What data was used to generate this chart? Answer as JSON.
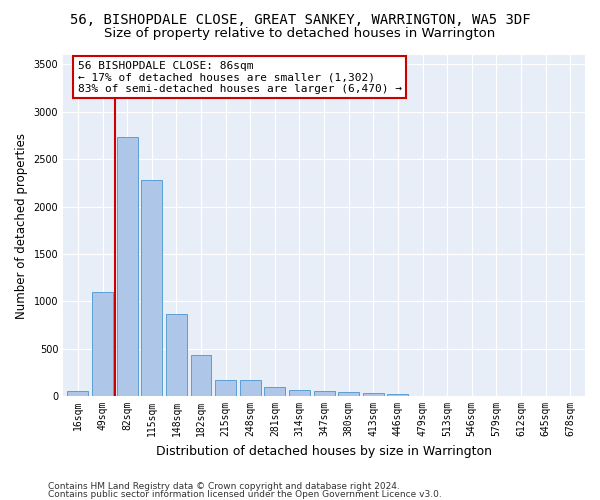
{
  "title": "56, BISHOPDALE CLOSE, GREAT SANKEY, WARRINGTON, WA5 3DF",
  "subtitle": "Size of property relative to detached houses in Warrington",
  "xlabel": "Distribution of detached houses by size in Warrington",
  "ylabel": "Number of detached properties",
  "categories": [
    "16sqm",
    "49sqm",
    "82sqm",
    "115sqm",
    "148sqm",
    "182sqm",
    "215sqm",
    "248sqm",
    "281sqm",
    "314sqm",
    "347sqm",
    "380sqm",
    "413sqm",
    "446sqm",
    "479sqm",
    "513sqm",
    "546sqm",
    "579sqm",
    "612sqm",
    "645sqm",
    "678sqm"
  ],
  "values": [
    50,
    1100,
    2730,
    2280,
    870,
    430,
    170,
    170,
    95,
    65,
    50,
    45,
    30,
    20,
    5,
    5,
    0,
    0,
    0,
    0,
    0
  ],
  "bar_color": "#aec6e8",
  "bar_edge_color": "#5a9fd4",
  "ylim": [
    0,
    3600
  ],
  "yticks": [
    0,
    500,
    1000,
    1500,
    2000,
    2500,
    3000,
    3500
  ],
  "annotation_box_text": "56 BISHOPDALE CLOSE: 86sqm\n← 17% of detached houses are smaller (1,302)\n83% of semi-detached houses are larger (6,470) →",
  "vline_x_idx": 1.5,
  "vline_color": "#cc0000",
  "box_edge_color": "#cc0000",
  "background_color": "#e8eef8",
  "footer_line1": "Contains HM Land Registry data © Crown copyright and database right 2024.",
  "footer_line2": "Contains public sector information licensed under the Open Government Licence v3.0.",
  "title_fontsize": 10,
  "subtitle_fontsize": 9.5,
  "xlabel_fontsize": 9,
  "ylabel_fontsize": 8.5,
  "tick_fontsize": 7,
  "annotation_fontsize": 8,
  "footer_fontsize": 6.5
}
